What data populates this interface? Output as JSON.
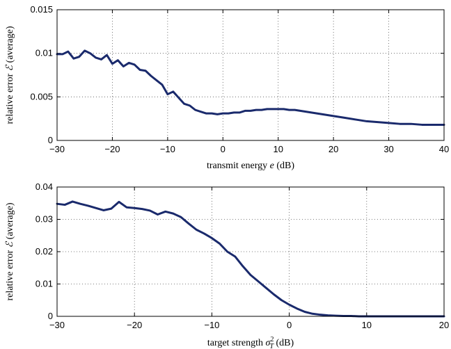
{
  "chart_data": [
    {
      "type": "line",
      "title": "",
      "xlabel": "transmit energy e (dB)",
      "ylabel": "relative error ℰ (average)",
      "xlim": [
        -30,
        40
      ],
      "ylim": [
        0,
        0.015
      ],
      "xticks": [
        -30,
        -20,
        -10,
        0,
        10,
        20,
        30,
        40
      ],
      "xtick_labels": [
        "−30",
        "−20",
        "−10",
        "0",
        "10",
        "20",
        "30",
        "40"
      ],
      "yticks": [
        0,
        0.005,
        0.01,
        0.015
      ],
      "ytick_labels": [
        "0",
        "0.005",
        "0.01",
        "0.015"
      ],
      "grid": true,
      "line_color": "#1a2a6c",
      "series": [
        {
          "x": [
            -30,
            -29,
            -28,
            -27,
            -26,
            -25,
            -24,
            -23,
            -22,
            -21,
            -20,
            -19,
            -18,
            -17,
            -16,
            -15,
            -14,
            -13,
            -12,
            -11,
            -10,
            -9,
            -8,
            -7,
            -6,
            -5,
            -4,
            -3,
            -2,
            -1,
            0,
            1,
            2,
            3,
            4,
            5,
            6,
            7,
            8,
            9,
            10,
            11,
            12,
            13,
            14,
            15,
            16,
            17,
            18,
            19,
            20,
            22,
            24,
            26,
            28,
            30,
            32,
            34,
            36,
            38,
            40
          ],
          "y": [
            0.0099,
            0.0099,
            0.0102,
            0.0094,
            0.0096,
            0.0103,
            0.01,
            0.0095,
            0.0093,
            0.0098,
            0.0088,
            0.0092,
            0.0085,
            0.0089,
            0.0087,
            0.0081,
            0.008,
            0.0074,
            0.0069,
            0.0064,
            0.0053,
            0.0056,
            0.0049,
            0.0042,
            0.004,
            0.0035,
            0.0033,
            0.0031,
            0.0031,
            0.003,
            0.0031,
            0.0031,
            0.0032,
            0.0032,
            0.0034,
            0.0034,
            0.0035,
            0.0035,
            0.0036,
            0.0036,
            0.0036,
            0.0036,
            0.0035,
            0.0035,
            0.0034,
            0.0033,
            0.0032,
            0.0031,
            0.003,
            0.0029,
            0.0028,
            0.0026,
            0.0024,
            0.0022,
            0.0021,
            0.002,
            0.0019,
            0.0019,
            0.0018,
            0.0018,
            0.0018
          ]
        }
      ]
    },
    {
      "type": "line",
      "title": "",
      "xlabel": "target strength σ²_T (dB)",
      "ylabel": "relative error ℰ (average)",
      "xlim": [
        -30,
        20
      ],
      "ylim": [
        0,
        0.04
      ],
      "xticks": [
        -30,
        -20,
        -10,
        0,
        10,
        20
      ],
      "xtick_labels": [
        "−30",
        "−20",
        "−10",
        "0",
        "10",
        "20"
      ],
      "yticks": [
        0,
        0.01,
        0.02,
        0.03,
        0.04
      ],
      "ytick_labels": [
        "0",
        "0.01",
        "0.02",
        "0.03",
        "0.04"
      ],
      "grid": true,
      "line_color": "#1a2a6c",
      "series": [
        {
          "x": [
            -30,
            -29,
            -28,
            -27,
            -26,
            -25,
            -24,
            -23,
            -22,
            -21,
            -20,
            -19,
            -18,
            -17,
            -16,
            -15,
            -14,
            -13,
            -12,
            -11,
            -10,
            -9,
            -8,
            -7,
            -6,
            -5,
            -4,
            -3,
            -2,
            -1,
            0,
            1,
            2,
            3,
            4,
            5,
            6,
            7,
            8,
            9,
            10,
            12,
            14,
            16,
            18,
            20
          ],
          "y": [
            0.0348,
            0.0345,
            0.0355,
            0.0348,
            0.0342,
            0.0335,
            0.0328,
            0.0333,
            0.0354,
            0.0337,
            0.0335,
            0.0332,
            0.0327,
            0.0315,
            0.0324,
            0.0318,
            0.0307,
            0.0287,
            0.0268,
            0.0256,
            0.0242,
            0.0225,
            0.02,
            0.0185,
            0.0155,
            0.0128,
            0.0108,
            0.0088,
            0.0068,
            0.005,
            0.0036,
            0.0024,
            0.0014,
            0.0008,
            0.0005,
            0.0003,
            0.0002,
            0.0001,
            0.0001,
            0.0,
            0.0,
            0.0,
            0.0,
            0.0,
            0.0,
            0.0
          ]
        }
      ]
    }
  ]
}
